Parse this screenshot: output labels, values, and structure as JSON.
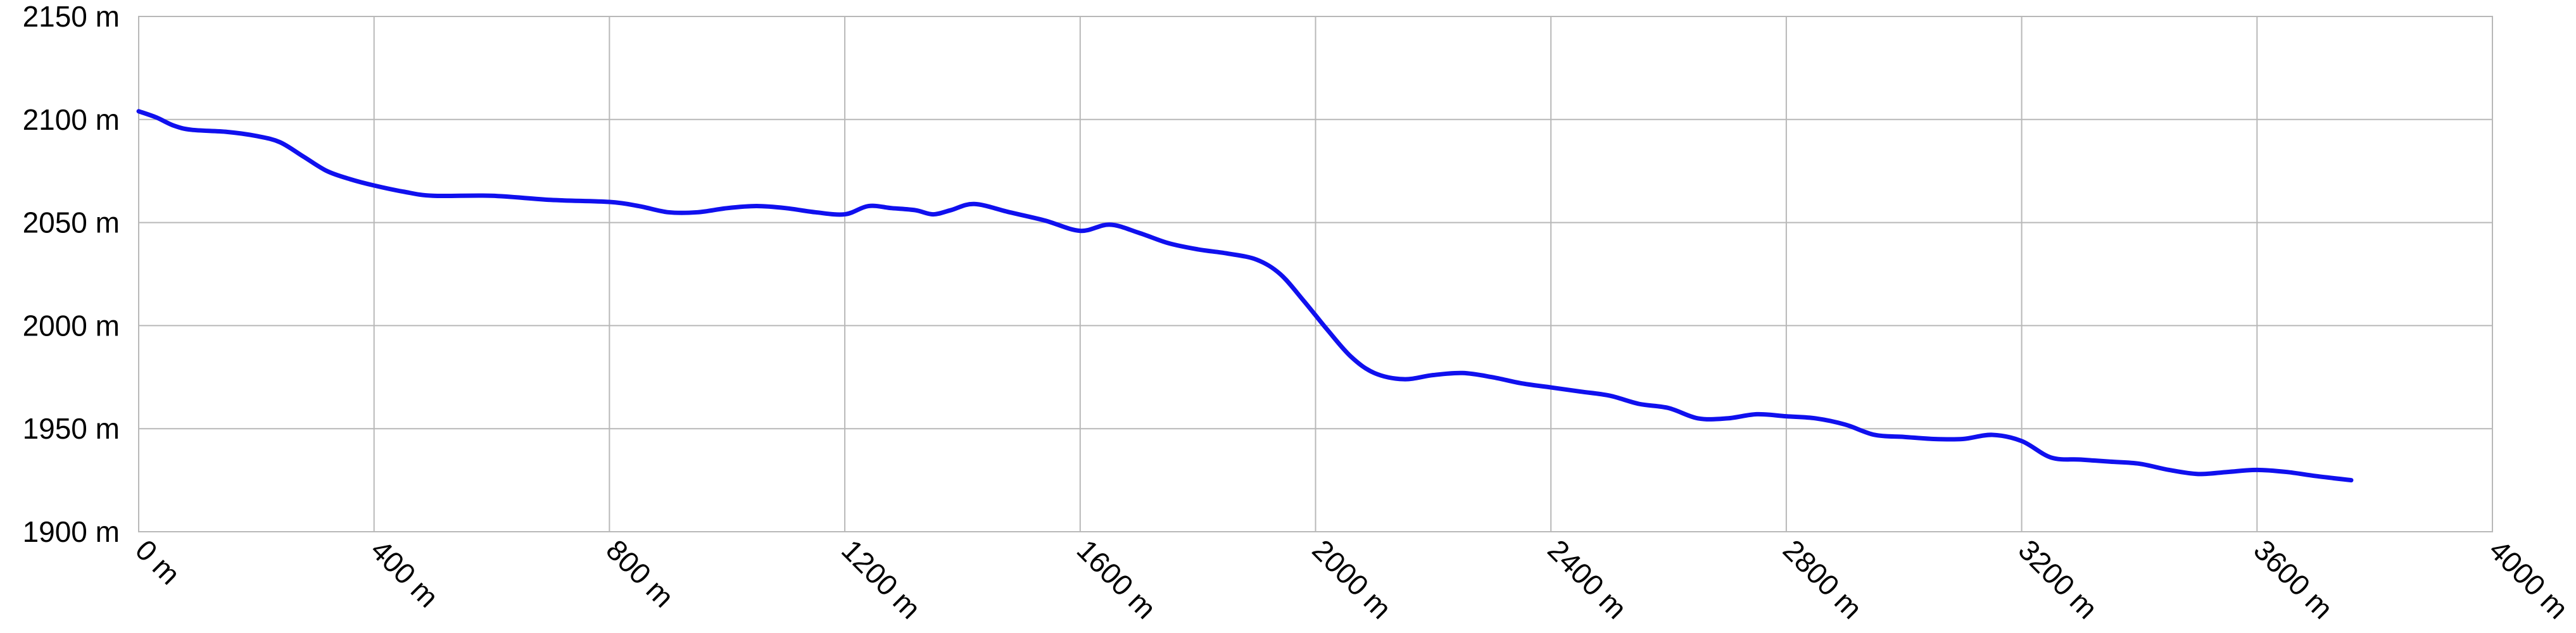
{
  "chart_data": {
    "type": "line",
    "title": "",
    "xlabel": "",
    "ylabel": "",
    "xlim": [
      0,
      4000
    ],
    "ylim": [
      1900,
      2150
    ],
    "x_ticks": [
      0,
      400,
      800,
      1200,
      1600,
      2000,
      2400,
      2800,
      3200,
      3600,
      4000
    ],
    "x_tick_labels": [
      "0 m",
      "400 m",
      "800 m",
      "1200 m",
      "1600 m",
      "2000 m",
      "2400 m",
      "2800 m",
      "3200 m",
      "3600 m",
      "4000 m"
    ],
    "y_ticks": [
      1900,
      1950,
      2000,
      2050,
      2100,
      2150
    ],
    "y_tick_labels": [
      "1900 m",
      "1950 m",
      "2000 m",
      "2050 m",
      "2100 m",
      "2150 m"
    ],
    "grid": true,
    "legend": "none",
    "series": [
      {
        "color": "#1010ee",
        "x": [
          0,
          30,
          60,
          90,
          150,
          200,
          240,
          280,
          320,
          360,
          400,
          450,
          500,
          600,
          700,
          800,
          850,
          900,
          950,
          1000,
          1050,
          1100,
          1150,
          1200,
          1240,
          1280,
          1320,
          1350,
          1380,
          1420,
          1480,
          1540,
          1600,
          1650,
          1700,
          1750,
          1800,
          1850,
          1900,
          1940,
          1980,
          2020,
          2060,
          2100,
          2150,
          2200,
          2250,
          2300,
          2350,
          2400,
          2450,
          2500,
          2550,
          2600,
          2650,
          2700,
          2750,
          2800,
          2850,
          2900,
          2950,
          3000,
          3050,
          3100,
          3150,
          3200,
          3250,
          3300,
          3350,
          3400,
          3450,
          3500,
          3550,
          3600,
          3650,
          3700,
          3760
        ],
        "y": [
          2104,
          2101,
          2097,
          2095,
          2094,
          2092,
          2089,
          2082,
          2075,
          2071,
          2068,
          2065,
          2063,
          2063,
          2061,
          2060,
          2058,
          2055,
          2055,
          2057,
          2058,
          2057,
          2055,
          2054,
          2058,
          2057,
          2056,
          2054,
          2056,
          2059,
          2055,
          2051,
          2046,
          2049,
          2045,
          2040,
          2037,
          2035,
          2032,
          2025,
          2012,
          1998,
          1985,
          1977,
          1974,
          1976,
          1977,
          1975,
          1972,
          1970,
          1968,
          1966,
          1962,
          1960,
          1955,
          1955,
          1957,
          1956,
          1955,
          1952,
          1947,
          1946,
          1945,
          1945,
          1947,
          1944,
          1936,
          1935,
          1934,
          1933,
          1930,
          1928,
          1929,
          1930,
          1929,
          1927,
          1925
        ]
      }
    ]
  }
}
